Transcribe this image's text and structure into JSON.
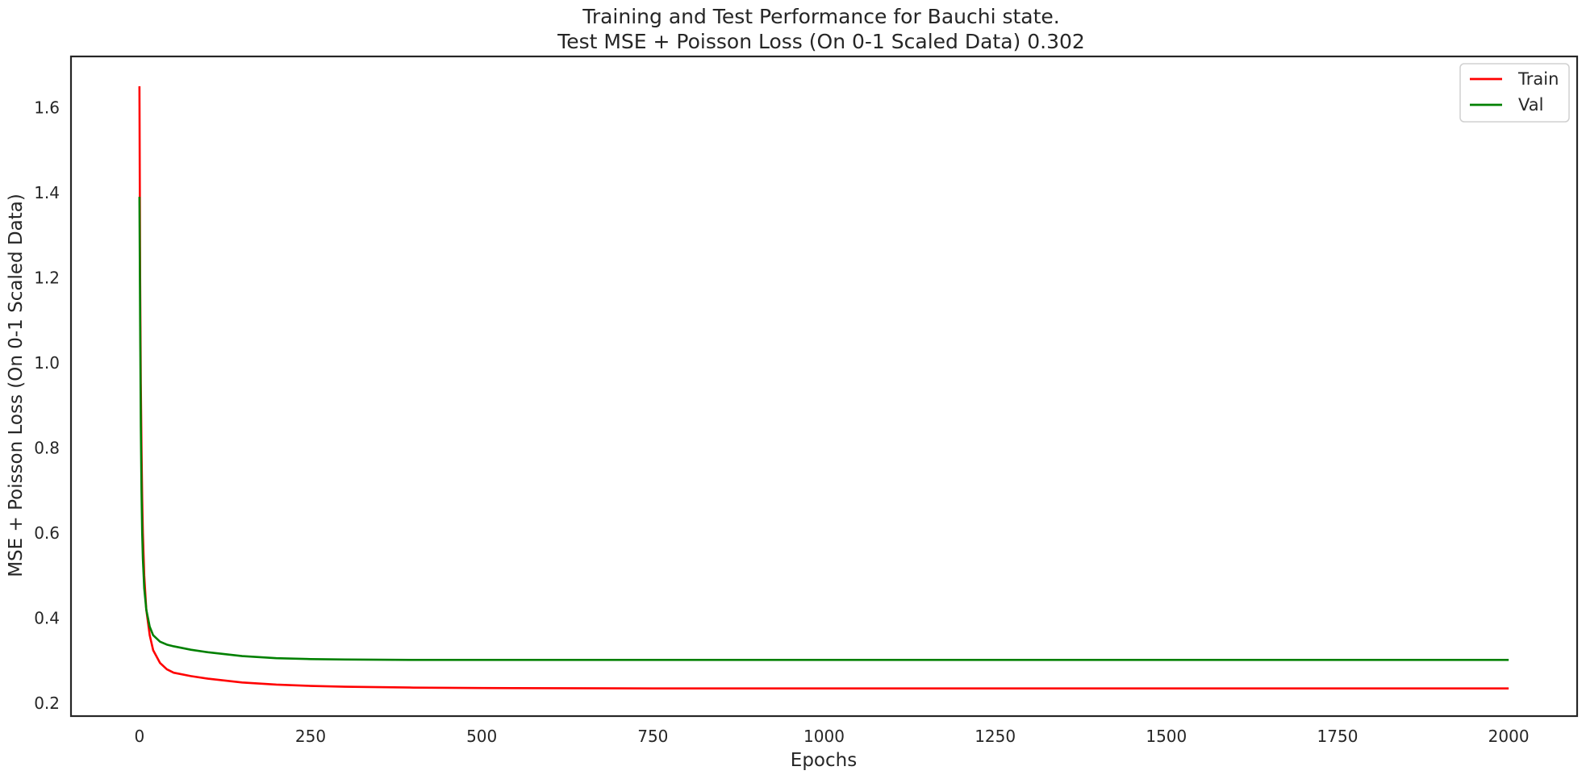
{
  "chart_data": {
    "type": "line",
    "title": "Training and Test Performance for Bauchi state.",
    "subtitle": "Test MSE + Poisson Loss (On 0-1 Scaled Data) 0.302",
    "xlabel": "Epochs",
    "ylabel": "MSE + Poisson Loss (On 0-1 Scaled Data)",
    "xlim": [
      -100,
      2100
    ],
    "ylim": [
      0.17,
      1.72
    ],
    "xticks": [
      0,
      250,
      500,
      750,
      1000,
      1250,
      1500,
      1750,
      2000
    ],
    "yticks": [
      0.2,
      0.4,
      0.6,
      0.8,
      1.0,
      1.2,
      1.4,
      1.6
    ],
    "grid": false,
    "legend": "top-right",
    "series": [
      {
        "name": "Train",
        "color": "#ff0000",
        "x": [
          0,
          1,
          2,
          3,
          4,
          5,
          7,
          10,
          15,
          20,
          30,
          40,
          50,
          75,
          100,
          150,
          200,
          250,
          300,
          400,
          500,
          750,
          1000,
          1250,
          1500,
          1750,
          2000
        ],
        "y": [
          1.65,
          1.2,
          0.95,
          0.8,
          0.68,
          0.6,
          0.5,
          0.42,
          0.36,
          0.325,
          0.295,
          0.28,
          0.272,
          0.264,
          0.258,
          0.249,
          0.244,
          0.241,
          0.239,
          0.237,
          0.236,
          0.235,
          0.235,
          0.235,
          0.235,
          0.235,
          0.235
        ]
      },
      {
        "name": "Val",
        "color": "#008000",
        "x": [
          0,
          1,
          2,
          3,
          4,
          5,
          7,
          10,
          15,
          20,
          30,
          40,
          50,
          75,
          100,
          150,
          200,
          250,
          300,
          400,
          500,
          750,
          1000,
          1250,
          1500,
          1750,
          2000
        ],
        "y": [
          1.39,
          1.1,
          0.85,
          0.7,
          0.6,
          0.54,
          0.47,
          0.42,
          0.38,
          0.36,
          0.345,
          0.338,
          0.334,
          0.326,
          0.32,
          0.311,
          0.306,
          0.304,
          0.303,
          0.302,
          0.302,
          0.302,
          0.302,
          0.302,
          0.302,
          0.302,
          0.302
        ]
      }
    ]
  }
}
